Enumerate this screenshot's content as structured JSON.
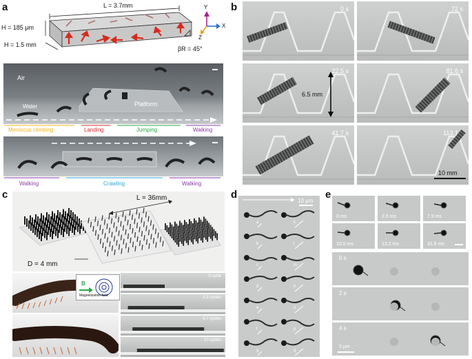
{
  "panels": {
    "a": "a",
    "b": "b",
    "c": "c",
    "d": "d",
    "e": "e"
  },
  "a": {
    "dim_L": "L = 3.7mm",
    "dim_H1": "H = 185 μm",
    "dim_H2": "H = 1.5 mm",
    "beta": "βR = 45°",
    "axis_y": "Y",
    "axis_x": "X",
    "axis_z": "Z",
    "air": "Air",
    "water": "Water",
    "platform": "Platform",
    "phases_top": [
      {
        "label": "Meniscus climbing",
        "color": "#f2b51b"
      },
      {
        "label": "Landing",
        "color": "#e12a2a"
      },
      {
        "label": "Jumping",
        "color": "#2aa84a"
      },
      {
        "label": "Walking",
        "color": "#8a3aa8"
      }
    ],
    "phases_bottom": [
      {
        "label": "Walking",
        "color": "#8a3aa8"
      },
      {
        "label": "Crawling",
        "color": "#29a8d8"
      },
      {
        "label": "Walking",
        "color": "#8a3aa8"
      }
    ]
  },
  "b": {
    "times": [
      "0 s",
      "72 s",
      "22.5 s",
      "81.6 s",
      "41.7 s",
      "113.1 s"
    ],
    "height": "6.5 mm",
    "scale": "10 mm"
  },
  "c": {
    "dim_L": "L = 36mm",
    "dim_D": "D = 4 mm",
    "field_label": "B",
    "magnetization": "Magnetization field",
    "cycles": [
      "0 cycle",
      "3.3 cycles",
      "6.7 cycles",
      "10 cycles"
    ]
  },
  "d": {
    "scale": "10 μm",
    "left_letters": [
      "a",
      "b",
      "c",
      "d",
      "e",
      "f",
      "g"
    ],
    "right_letters": [
      "k",
      "l",
      "m",
      "n",
      "o",
      "p",
      "q"
    ]
  },
  "e": {
    "times_small": [
      "0 ms",
      "2.6 ms",
      "7.9 ms",
      "10.5 ms",
      "13.2 ms",
      "31.6 ms"
    ],
    "times_large": [
      "0 s",
      "2 s",
      "4 s"
    ],
    "scale": "5 μm"
  }
}
